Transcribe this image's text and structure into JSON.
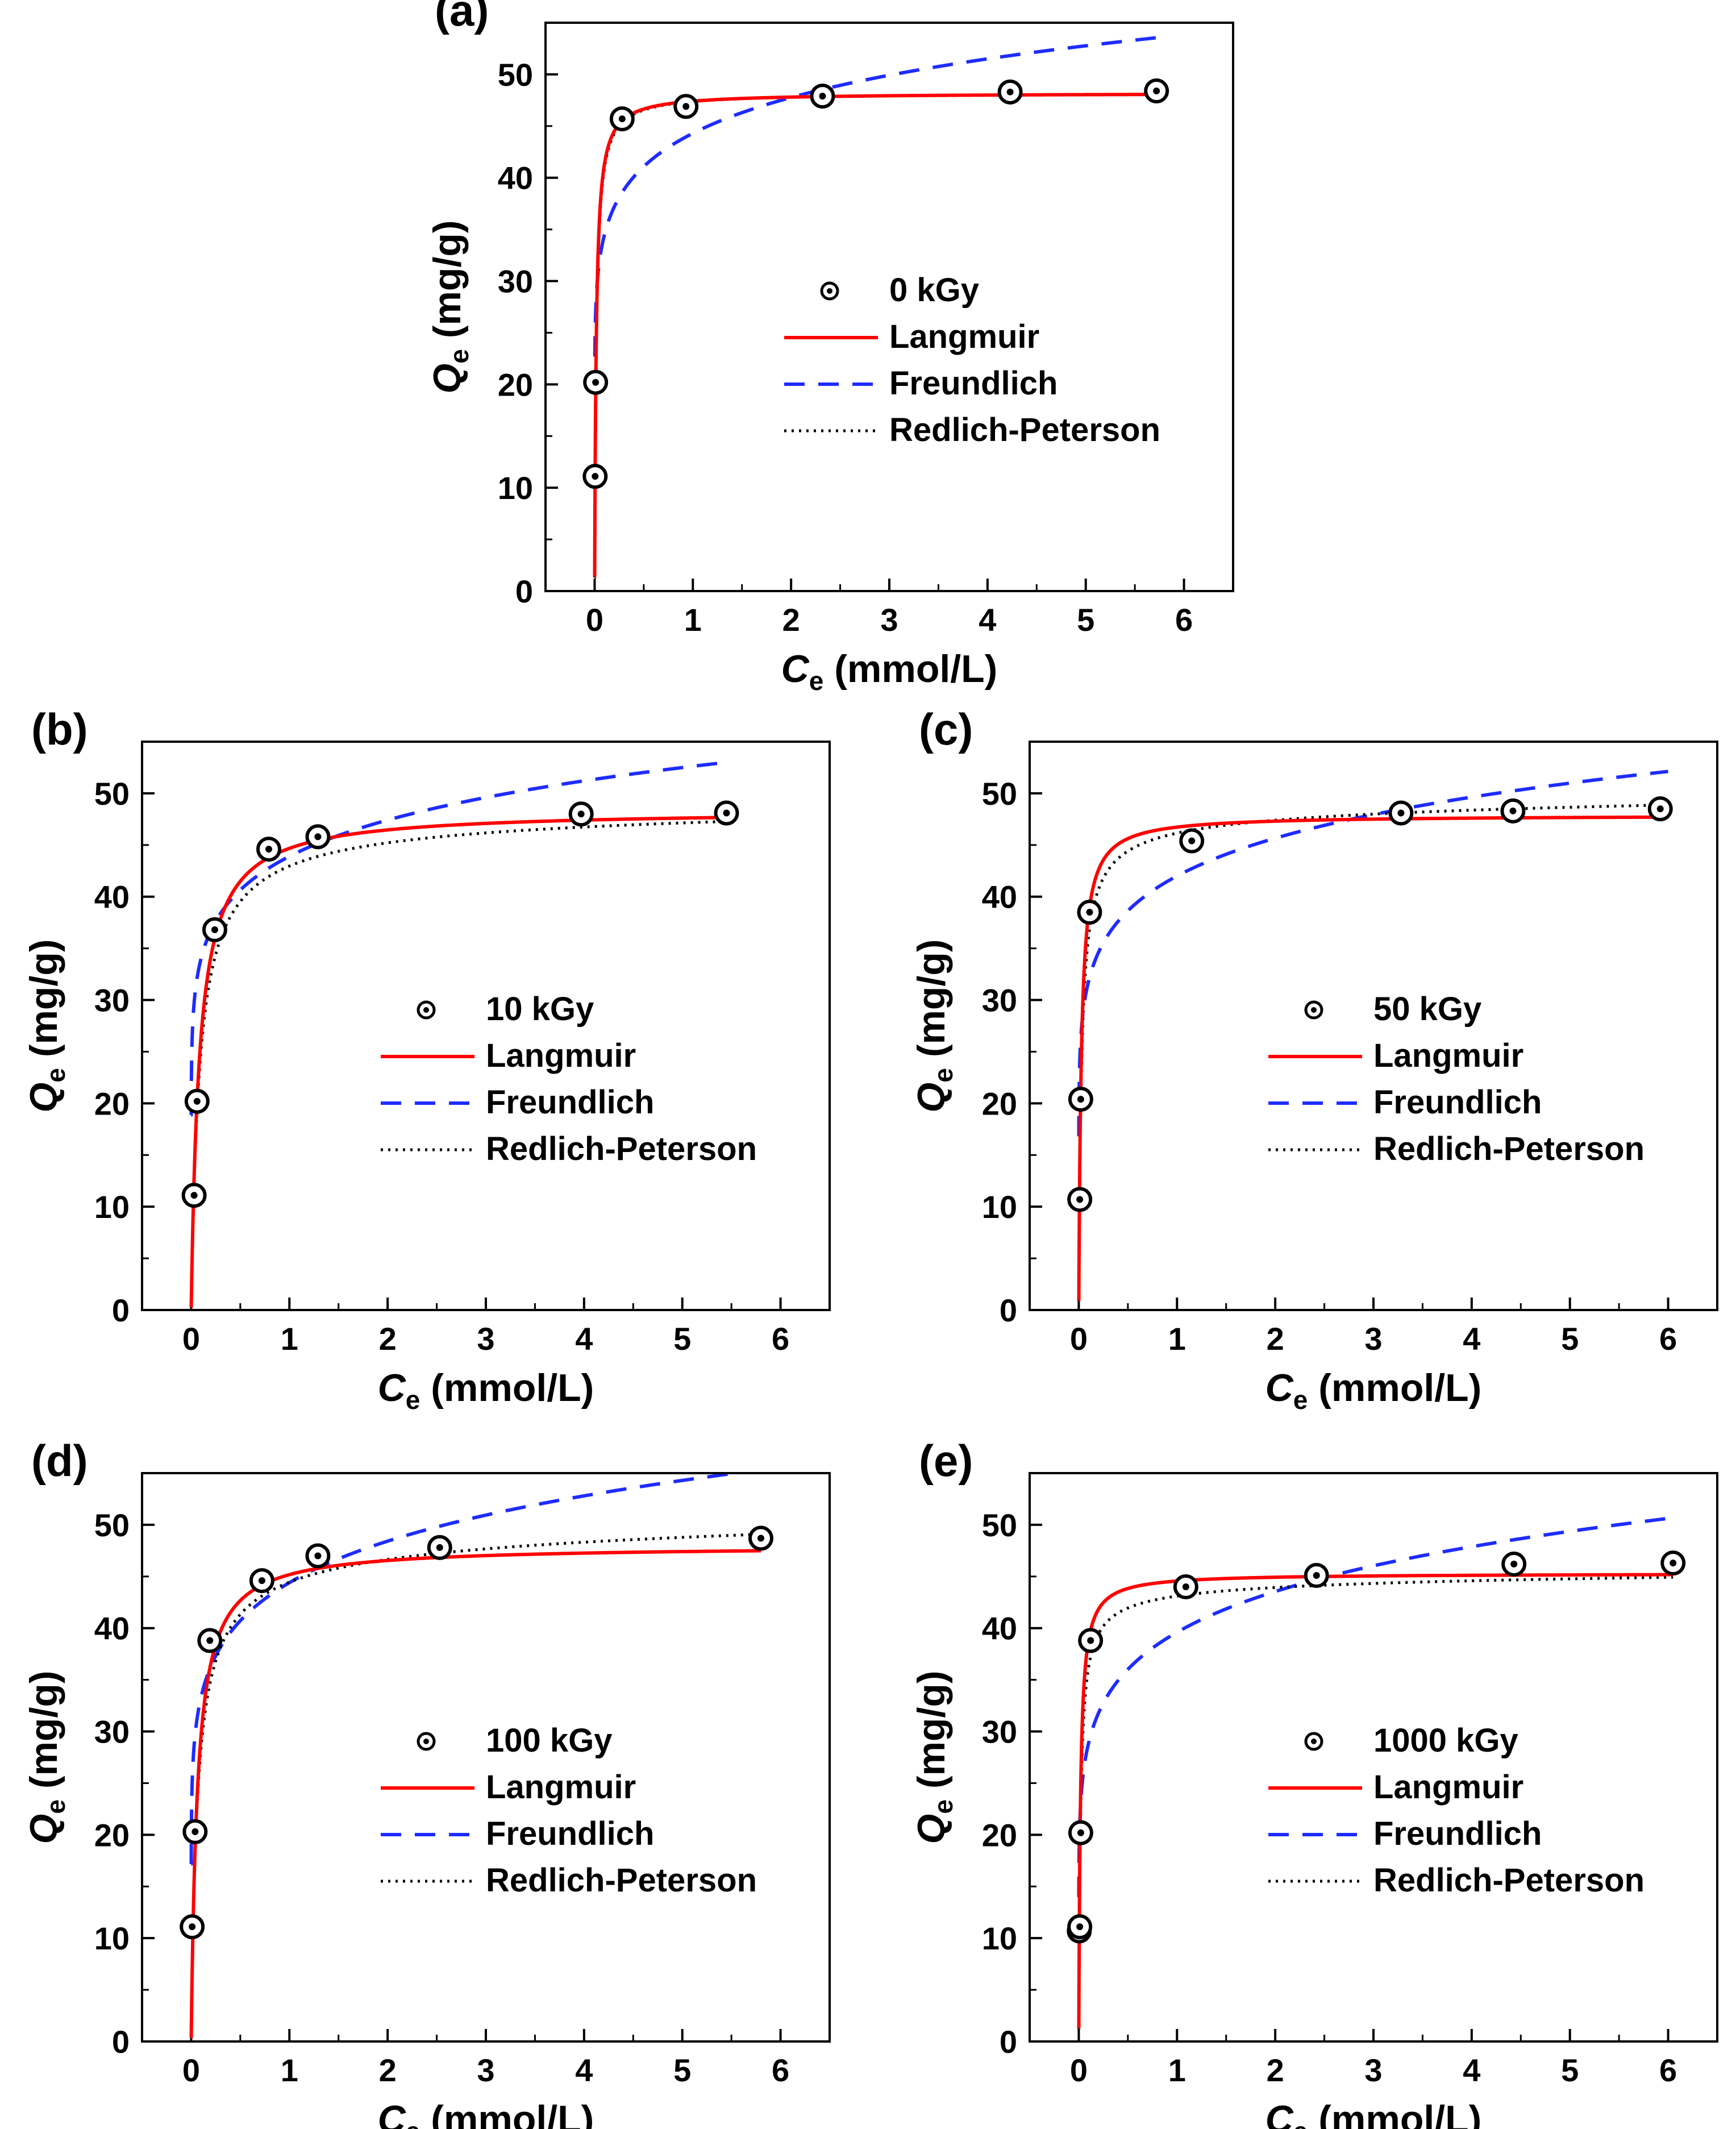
{
  "figure": {
    "colors": {
      "langmuir": "#ff0000",
      "freundlich": "#1e2cff",
      "redlich_peterson": "#000000",
      "marker": "#000000"
    }
  },
  "chart_data": [
    {
      "id": "a",
      "panel_label": "(a)",
      "type": "scatter",
      "title": "",
      "xlabel_var": "C",
      "xlabel_sub": "e",
      "xlabel_unit": " (mmol/L)",
      "ylabel_var": "Q",
      "ylabel_sub": "e",
      "ylabel_unit": " (mg/g)",
      "xlim": [
        -0.5,
        6.5
      ],
      "ylim": [
        0,
        55
      ],
      "xticks": [
        0,
        1,
        2,
        3,
        4,
        5,
        6
      ],
      "yticks": [
        0,
        10,
        20,
        30,
        40,
        50
      ],
      "legend_placement": "center-right",
      "series": [
        {
          "name": "0 kGy",
          "kind": "points",
          "x": [
            0.005,
            0.01,
            0.28,
            0.93,
            2.32,
            4.23,
            5.72
          ],
          "y": [
            11.1,
            20.2,
            45.7,
            46.9,
            47.9,
            48.3,
            48.4
          ]
        },
        {
          "name": "Langmuir",
          "kind": "fit",
          "model": "langmuir",
          "qm": 48.2,
          "kl": 60,
          "xmax": 5.75
        },
        {
          "name": "Freundlich",
          "kind": "fit",
          "model": "freundlich",
          "kf": 44.3,
          "n": 9.2,
          "xmax": 5.75
        },
        {
          "name": "Redlich-Peterson",
          "kind": "fit",
          "model": "rp",
          "kr": 2700,
          "ar": 56,
          "beta": 1.0,
          "xmax": 5.75
        }
      ]
    },
    {
      "id": "b",
      "panel_label": "(b)",
      "type": "scatter",
      "title": "",
      "xlabel_var": "C",
      "xlabel_sub": "e",
      "xlabel_unit": " (mmol/L)",
      "ylabel_var": "Q",
      "ylabel_sub": "e",
      "ylabel_unit": " (mg/g)",
      "xlim": [
        -0.5,
        6.5
      ],
      "ylim": [
        0,
        55
      ],
      "xticks": [
        0,
        1,
        2,
        3,
        4,
        5,
        6
      ],
      "yticks": [
        0,
        10,
        20,
        30,
        40,
        50
      ],
      "legend_placement": "center-right",
      "series": [
        {
          "name": "10 kGy",
          "kind": "points",
          "x": [
            0.03,
            0.06,
            0.24,
            0.79,
            1.29,
            3.97,
            5.45
          ],
          "y": [
            11.1,
            20.2,
            36.8,
            44.6,
            45.8,
            48.0,
            48.1
          ]
        },
        {
          "name": "Langmuir",
          "kind": "fit",
          "model": "langmuir",
          "qm": 48.4,
          "kl": 12,
          "xmax": 5.45
        },
        {
          "name": "Freundlich",
          "kind": "fit",
          "model": "freundlich",
          "kf": 43.9,
          "n": 9.0,
          "xmax": 5.45
        },
        {
          "name": "Redlich-Peterson",
          "kind": "fit",
          "model": "rp",
          "kr": 580,
          "ar": 12.5,
          "beta": 0.98,
          "xmax": 5.45
        }
      ]
    },
    {
      "id": "c",
      "panel_label": "(c)",
      "type": "scatter",
      "title": "",
      "xlabel_var": "C",
      "xlabel_sub": "e",
      "xlabel_unit": " (mmol/L)",
      "ylabel_var": "Q",
      "ylabel_sub": "e",
      "ylabel_unit": " (mg/g)",
      "xlim": [
        -0.5,
        6.5
      ],
      "ylim": [
        0,
        55
      ],
      "xticks": [
        0,
        1,
        2,
        3,
        4,
        5,
        6
      ],
      "yticks": [
        0,
        10,
        20,
        30,
        40,
        50
      ],
      "legend_placement": "center-right",
      "series": [
        {
          "name": "50 kGy",
          "kind": "points",
          "x": [
            0.01,
            0.02,
            0.11,
            1.15,
            3.28,
            4.42,
            5.92
          ],
          "y": [
            10.7,
            20.4,
            38.5,
            45.4,
            48.1,
            48.3,
            48.5
          ]
        },
        {
          "name": "Langmuir",
          "kind": "fit",
          "model": "langmuir",
          "qm": 47.9,
          "kl": 40,
          "xmax": 6.0
        },
        {
          "name": "Freundlich",
          "kind": "fit",
          "model": "freundlich",
          "kf": 42.0,
          "n": 8.3,
          "xmax": 6.0
        },
        {
          "name": "Redlich-Peterson",
          "kind": "fit",
          "model": "rp",
          "kr": 1800,
          "ar": 38,
          "beta": 0.98,
          "xmax": 6.0
        }
      ]
    },
    {
      "id": "d",
      "panel_label": "(d)",
      "type": "scatter",
      "title": "",
      "xlabel_var": "C",
      "xlabel_sub": "e",
      "xlabel_unit": " (mmol/L)",
      "ylabel_var": "Q",
      "ylabel_sub": "e",
      "ylabel_unit": " (mg/g)",
      "xlim": [
        -0.5,
        6.5
      ],
      "ylim": [
        0,
        55
      ],
      "xticks": [
        0,
        1,
        2,
        3,
        4,
        5,
        6
      ],
      "yticks": [
        0,
        10,
        20,
        30,
        40,
        50
      ],
      "legend_placement": "center-right",
      "series": [
        {
          "name": "100 kGy",
          "kind": "points",
          "x": [
            0.01,
            0.04,
            0.19,
            0.72,
            1.29,
            2.53,
            5.8
          ],
          "y": [
            11.1,
            20.3,
            38.8,
            44.6,
            47.0,
            47.8,
            48.7
          ]
        },
        {
          "name": "Langmuir",
          "kind": "fit",
          "model": "langmuir",
          "qm": 48.0,
          "kl": 16,
          "xmax": 5.8
        },
        {
          "name": "Freundlich",
          "kind": "fit",
          "model": "freundlich",
          "kf": 44.4,
          "n": 8.0,
          "xmax": 5.8
        },
        {
          "name": "Redlich-Peterson",
          "kind": "fit",
          "model": "rp",
          "kr": 800,
          "ar": 17,
          "beta": 0.97,
          "xmax": 5.8
        }
      ]
    },
    {
      "id": "e",
      "panel_label": "(e)",
      "type": "scatter",
      "title": "",
      "xlabel_var": "C",
      "xlabel_sub": "e",
      "xlabel_unit": " (mmol/L)",
      "ylabel_var": "Q",
      "ylabel_sub": "e",
      "ylabel_unit": " (mg/g)",
      "xlim": [
        -0.5,
        6.5
      ],
      "ylim": [
        0,
        55
      ],
      "xticks": [
        0,
        1,
        2,
        3,
        4,
        5,
        6
      ],
      "yticks": [
        0,
        10,
        20,
        30,
        40,
        50
      ],
      "legend_placement": "center-right",
      "series": [
        {
          "name": "1000 kGy",
          "kind": "points",
          "x": [
            0.005,
            0.01,
            0.02,
            0.12,
            1.09,
            2.42,
            4.43,
            6.05
          ],
          "y": [
            10.7,
            11.1,
            20.2,
            38.8,
            44.0,
            45.1,
            46.2,
            46.3
          ]
        },
        {
          "name": "Langmuir",
          "kind": "fit",
          "model": "langmuir",
          "qm": 45.3,
          "kl": 60,
          "xmax": 6.05
        },
        {
          "name": "Freundlich",
          "kind": "fit",
          "model": "freundlich",
          "kf": 39.6,
          "n": 7.3,
          "xmax": 6.05
        },
        {
          "name": "Redlich-Peterson",
          "kind": "fit",
          "model": "rp",
          "kr": 2500,
          "ar": 57,
          "beta": 0.985,
          "xmax": 6.05
        }
      ]
    }
  ]
}
